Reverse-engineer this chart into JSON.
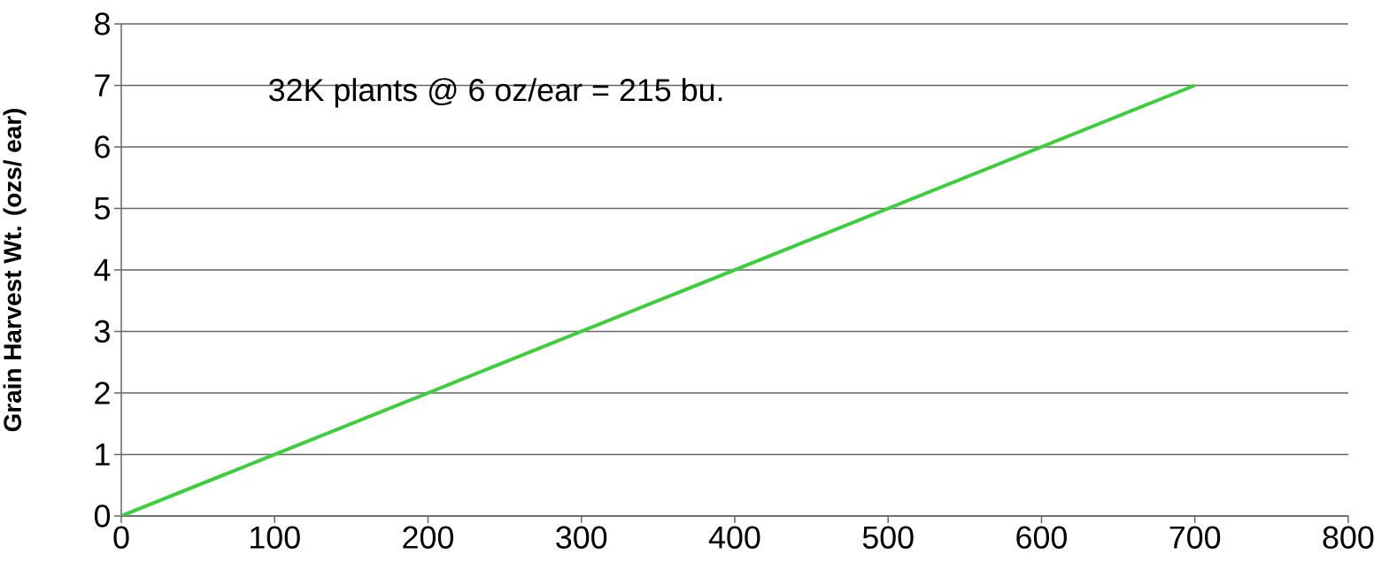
{
  "chart_data": {
    "type": "line",
    "ylabel": "Grain Harvest Wt. (ozs/ ear)",
    "annotations": [
      "32K plants @ 6 oz/ear = 215 bu."
    ],
    "x": [
      0,
      700
    ],
    "series": [
      {
        "color": "#3fcc3f",
        "values": [
          0,
          7
        ]
      }
    ],
    "xlim": [
      0,
      800
    ],
    "xticks": [
      0,
      100,
      200,
      300,
      400,
      500,
      600,
      700,
      800
    ],
    "ylim": [
      0,
      8
    ],
    "yticks": [
      0,
      1,
      2,
      3,
      4,
      5,
      6,
      7,
      8
    ],
    "grid": "y",
    "marker": "none",
    "line_style": "solid"
  }
}
